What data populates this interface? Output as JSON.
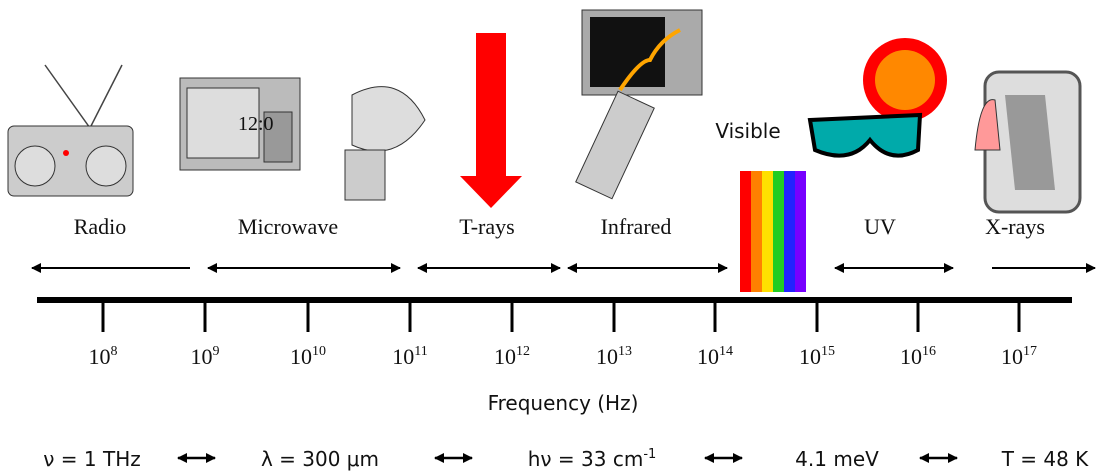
{
  "bands": [
    "Radio",
    "Microwave",
    "T-rays",
    "Infrared",
    "UV",
    "X-rays"
  ],
  "visible_label": "Visible",
  "microwave_display": "12:0",
  "ticks": [
    {
      "base": "10",
      "exp": "8"
    },
    {
      "base": "10",
      "exp": "9"
    },
    {
      "base": "10",
      "exp": "10"
    },
    {
      "base": "10",
      "exp": "11"
    },
    {
      "base": "10",
      "exp": "12"
    },
    {
      "base": "10",
      "exp": "13"
    },
    {
      "base": "10",
      "exp": "14"
    },
    {
      "base": "10",
      "exp": "15"
    },
    {
      "base": "10",
      "exp": "16"
    },
    {
      "base": "10",
      "exp": "17"
    }
  ],
  "axis_label": "Frequency (Hz)",
  "equivalences": [
    {
      "main": "ν = 1 THz"
    },
    {
      "main": "λ = 300 μm"
    },
    {
      "main": "hν = 33 cm",
      "sup": "-1"
    },
    {
      "main": "4.1 meV"
    },
    {
      "main": "T = 48 K"
    }
  ]
}
